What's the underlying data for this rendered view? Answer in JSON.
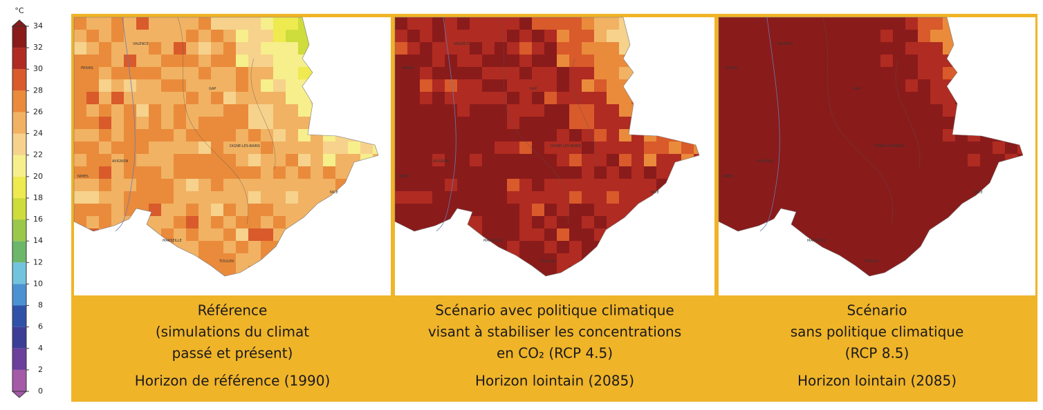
{
  "colorbar": {
    "unit": "°C",
    "ticks": [
      0,
      2,
      4,
      6,
      8,
      10,
      12,
      14,
      16,
      18,
      20,
      22,
      24,
      26,
      28,
      30,
      32,
      34
    ],
    "colors": [
      "#a55aa8",
      "#6b3f9c",
      "#3c3d97",
      "#2f52a8",
      "#4b92d3",
      "#72c3dd",
      "#6db76b",
      "#9bc84b",
      "#cedc3c",
      "#eeea4f",
      "#f6ef8c",
      "#f6d28c",
      "#f1b263",
      "#e98b3b",
      "#d95a2b",
      "#b02b21",
      "#8a1b1b"
    ]
  },
  "map_labels": [
    "VALENCE",
    "PRIVAS",
    "GAP",
    "DIGNE-LES-BAINS",
    "AVIGNON",
    "NIMES",
    "NICE",
    "MARSEILLE",
    "TOULON"
  ],
  "panels": [
    {
      "lines": [
        "Référence",
        "(simulations du climat",
        "passé et présent)"
      ],
      "horizon": "Horizon de référence (1990)"
    },
    {
      "lines": [
        "Scénario avec politique climatique",
        "visant à stabiliser les concentrations",
        "en CO₂ (RCP 4.5)"
      ],
      "horizon": "Horizon lointain (2085)"
    },
    {
      "lines": [
        "Scénario",
        "sans politique climatique",
        "(RCP 8.5)"
      ],
      "horizon": "Horizon lointain (2085)"
    }
  ]
}
